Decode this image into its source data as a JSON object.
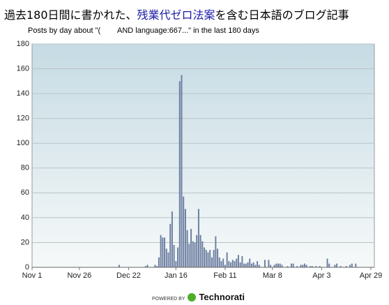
{
  "chart_data": {
    "type": "bar",
    "title_parts": [
      "過去180日間に書かれた、",
      "残業代ゼロ法案",
      "を含む日本語のブログ記事"
    ],
    "subtitle": "Posts by day about \"(        AND language:667...\" in the last 180 days",
    "x": [
      46,
      60,
      61,
      65,
      66,
      67,
      68,
      69,
      70,
      71,
      72,
      73,
      74,
      75,
      76,
      77,
      78,
      79,
      80,
      81,
      82,
      83,
      84,
      85,
      86,
      87,
      88,
      89,
      90,
      91,
      92,
      93,
      94,
      95,
      96,
      97,
      98,
      99,
      100,
      101,
      102,
      103,
      104,
      105,
      106,
      107,
      108,
      109,
      110,
      111,
      112,
      113,
      114,
      115,
      116,
      117,
      118,
      119,
      120,
      123,
      125,
      126,
      128,
      129,
      130,
      131,
      132,
      135,
      137,
      138,
      140,
      142,
      143,
      144,
      145,
      147,
      148,
      150,
      152,
      156,
      157,
      160,
      161,
      163,
      166,
      168,
      169,
      171
    ],
    "values": [
      2,
      1,
      2,
      2,
      1,
      8,
      26,
      24,
      24,
      15,
      12,
      35,
      45,
      18,
      5,
      16,
      150,
      155,
      57,
      47,
      30,
      19,
      31,
      21,
      20,
      26,
      47,
      26,
      21,
      16,
      14,
      12,
      14,
      8,
      14,
      25,
      15,
      8,
      5,
      7,
      2,
      12,
      5,
      4,
      6,
      5,
      7,
      10,
      4,
      9,
      3,
      3,
      4,
      7,
      3,
      4,
      2,
      5,
      2,
      6,
      6,
      2,
      2,
      3,
      3,
      3,
      2,
      1,
      3,
      3,
      1,
      2,
      2,
      3,
      2,
      1,
      1,
      1,
      1,
      7,
      3,
      2,
      3,
      1,
      1,
      2,
      3,
      3
    ],
    "color": "#6e80a2",
    "xlim": [
      0,
      179
    ],
    "xticks": [
      {
        "value": 0,
        "label": "Nov 1"
      },
      {
        "value": 25,
        "label": "Nov 26"
      },
      {
        "value": 51,
        "label": "Dec 22"
      },
      {
        "value": 76,
        "label": "Jan 16"
      },
      {
        "value": 102,
        "label": "Feb 11"
      },
      {
        "value": 127,
        "label": "Mar 8"
      },
      {
        "value": 153,
        "label": "Apr 3"
      },
      {
        "value": 179,
        "label": "Apr 29"
      }
    ],
    "ylim": [
      0,
      180
    ],
    "yticks": [
      0,
      20,
      40,
      60,
      80,
      100,
      120,
      140,
      160,
      180
    ],
    "grid": true
  },
  "footer": {
    "label": "POWERED BY",
    "brand": "Technorati"
  }
}
